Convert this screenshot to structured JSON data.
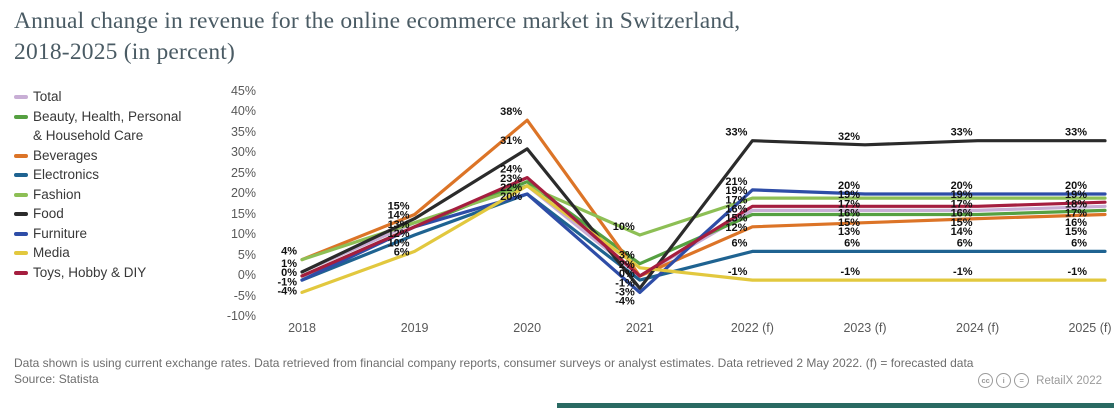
{
  "title": {
    "line1": "Annual change in revenue for the online ecommerce market in Switzerland,",
    "line2": "2018-2025 (in percent)"
  },
  "legend": {
    "items": [
      {
        "label": "Total",
        "color": "#c8aed5"
      },
      {
        "label": "Beauty, Health, Personal",
        "label2": "& Household Care",
        "color": "#55a041"
      },
      {
        "label": "Beverages",
        "color": "#dc7427"
      },
      {
        "label": "Electronics",
        "color": "#1f6391"
      },
      {
        "label": "Fashion",
        "color": "#8dbf55"
      },
      {
        "label": "Food",
        "color": "#2b2b2b"
      },
      {
        "label": "Furniture",
        "color": "#2e4da7"
      },
      {
        "label": "Media",
        "color": "#e2c83e"
      },
      {
        "label": "Toys, Hobby & DIY",
        "color": "#a51e3f"
      }
    ]
  },
  "chart_data": {
    "type": "line",
    "categories": [
      "2018",
      "2019",
      "2020",
      "2021",
      "2022 (f)",
      "2023 (f)",
      "2024 (f)",
      "2025 (f)"
    ],
    "series": [
      {
        "name": "Total",
        "color": "#c8aed5",
        "values": [
          1,
          13,
          22,
          0,
          16,
          16,
          16,
          17
        ]
      },
      {
        "name": "Beauty, Health, Personal & Household Care",
        "color": "#55a041",
        "values": [
          0,
          12,
          23,
          3,
          15,
          15,
          15,
          16
        ]
      },
      {
        "name": "Beverages",
        "color": "#dc7427",
        "values": [
          4,
          15,
          38,
          0,
          12,
          13,
          14,
          15
        ]
      },
      {
        "name": "Electronics",
        "color": "#1f6391",
        "values": [
          -1,
          10,
          20,
          -1,
          6,
          6,
          6,
          6
        ]
      },
      {
        "name": "Fashion",
        "color": "#8dbf55",
        "values": [
          4,
          13,
          22,
          10,
          19,
          19,
          19,
          19
        ]
      },
      {
        "name": "Food",
        "color": "#2b2b2b",
        "values": [
          1,
          14,
          31,
          -3,
          33,
          32,
          33,
          33
        ]
      },
      {
        "name": "Furniture",
        "color": "#2e4da7",
        "values": [
          -1,
          12,
          20,
          -4,
          21,
          20,
          20,
          20
        ]
      },
      {
        "name": "Media",
        "color": "#e2c83e",
        "values": [
          -4,
          6,
          22,
          2,
          -1,
          -1,
          -1,
          -1
        ]
      },
      {
        "name": "Toys, Hobby & DIY",
        "color": "#a51e3f",
        "values": [
          0,
          12,
          24,
          0,
          17,
          17,
          17,
          18
        ]
      }
    ],
    "yticks": [
      45,
      40,
      35,
      30,
      25,
      20,
      15,
      10,
      5,
      0,
      -5,
      -10
    ],
    "ylim": [
      -10,
      45
    ],
    "ylabel": "",
    "xlabel": "",
    "grid": false,
    "legend_position": "left",
    "value_suffix": "%"
  },
  "footer": {
    "note": "Data shown is using current exchange rates. Data retrieved from financial company reports, consumer surveys or analyst estimates. Data retrieved 2 May 2022. (f) = forecasted data",
    "source": "Source: Statista",
    "credit": "RetailX 2022",
    "cc_icons": [
      "cc",
      "i",
      "="
    ],
    "accent_bar_color": "#2a6a63"
  }
}
